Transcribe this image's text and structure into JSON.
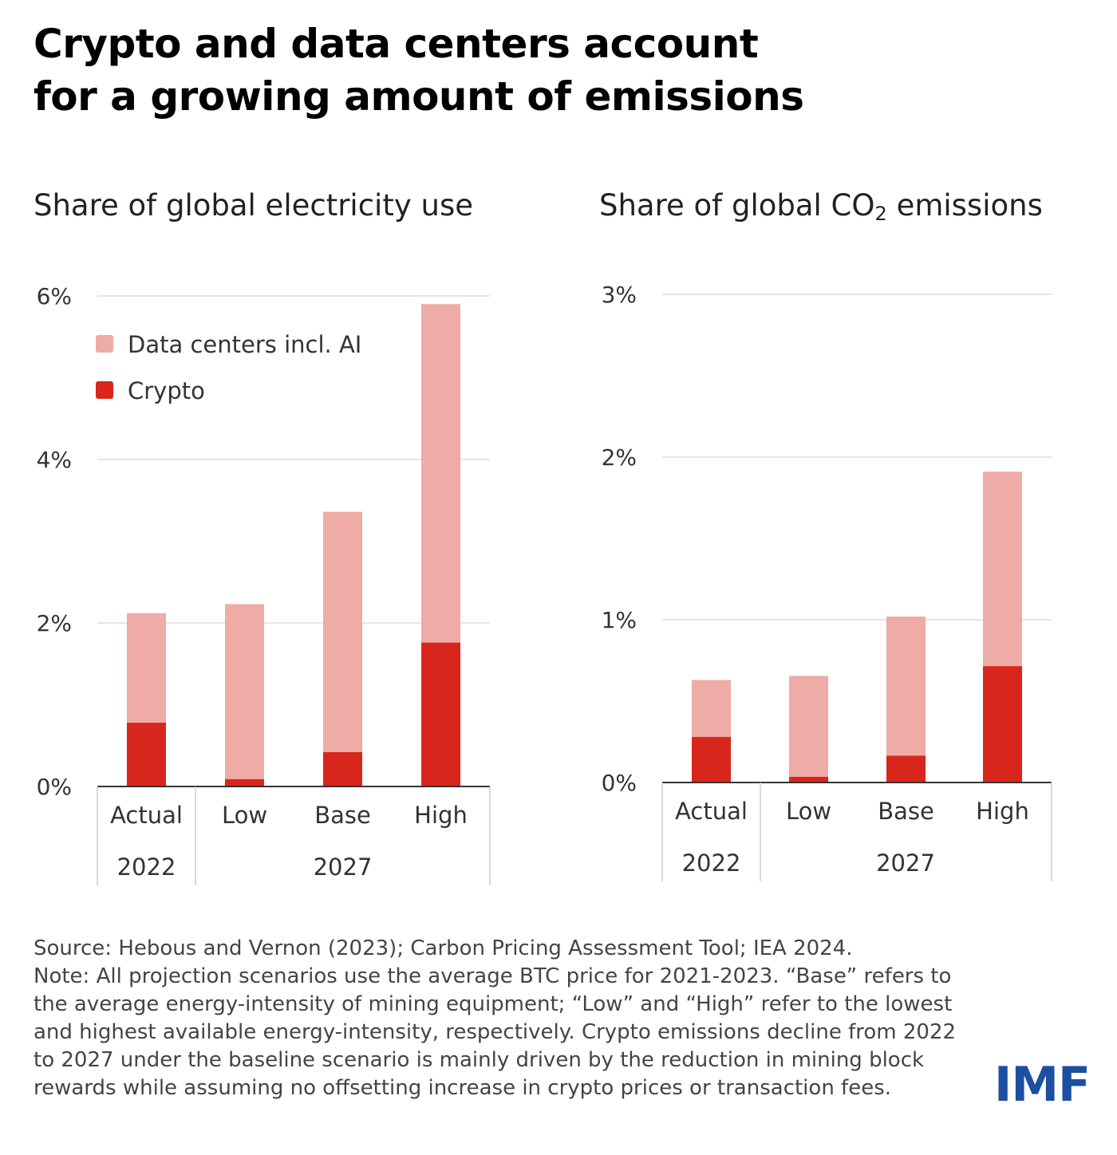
{
  "title_lines": [
    "Crypto and data centers account",
    "for a growing amount of emissions"
  ],
  "colors": {
    "data_centers": "#efaba6",
    "crypto": "#d9261c",
    "grid": "#dddddd",
    "axis": "#333333",
    "logo": "#1c4fa0"
  },
  "legend": [
    {
      "label": "Data centers incl. AI",
      "color": "#efaba6"
    },
    {
      "label": "Crypto",
      "color": "#d9261c"
    }
  ],
  "chart_data": [
    {
      "type": "bar",
      "stacked": true,
      "title": "Share of global electricity use",
      "categories": [
        "Actual",
        "Low",
        "Base",
        "High"
      ],
      "groups": [
        {
          "label": "2022",
          "categories": [
            "Actual"
          ]
        },
        {
          "label": "2027",
          "categories": [
            "Low",
            "Base",
            "High"
          ]
        }
      ],
      "series": [
        {
          "name": "Crypto",
          "values": [
            0.78,
            0.09,
            0.42,
            1.76
          ]
        },
        {
          "name": "Data centers incl. AI",
          "values": [
            1.34,
            2.14,
            2.94,
            4.14
          ]
        }
      ],
      "yticks": [
        0,
        2,
        4,
        6
      ],
      "ytick_labels": [
        "0%",
        "2%",
        "4%",
        "6%"
      ],
      "ylim": [
        0,
        6
      ],
      "grid": true,
      "legend_position": "top-left"
    },
    {
      "type": "bar",
      "stacked": true,
      "title_parts": [
        "Share of global CO",
        "2",
        " emissions"
      ],
      "categories": [
        "Actual",
        "Low",
        "Base",
        "High"
      ],
      "groups": [
        {
          "label": "2022",
          "categories": [
            "Actual"
          ]
        },
        {
          "label": "2027",
          "categories": [
            "Low",
            "Base",
            "High"
          ]
        }
      ],
      "series": [
        {
          "name": "Crypto",
          "values": [
            0.28,
            0.035,
            0.165,
            0.715
          ]
        },
        {
          "name": "Data centers incl. AI",
          "values": [
            0.35,
            0.62,
            0.855,
            1.195
          ]
        }
      ],
      "yticks": [
        0,
        1,
        2,
        3
      ],
      "ytick_labels": [
        "0%",
        "1%",
        "2%",
        "3%"
      ],
      "ylim": [
        0,
        3
      ],
      "grid": true
    }
  ],
  "footnote_lines": [
    "Source: Hebous and Vernon (2023); Carbon Pricing Assessment Tool; IEA 2024.",
    "Note: All projection scenarios use the average BTC price for 2021-2023. “Base” refers to",
    "the average energy-intensity of mining equipment; “Low” and “High” refer to the lowest",
    "and highest available energy-intensity, respectively. Crypto emissions decline from 2022",
    "to 2027 under the baseline scenario is mainly driven by the reduction in mining block",
    "rewards while assuming no offsetting increase in crypto prices or transaction fees."
  ],
  "logo_text": "IMF"
}
